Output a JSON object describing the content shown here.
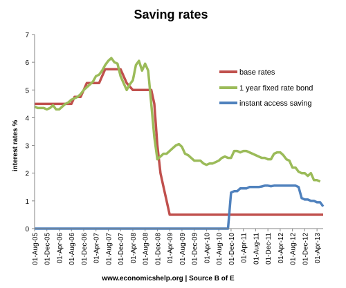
{
  "chart_data": {
    "type": "line",
    "title": "Saving rates",
    "xlabel": "",
    "ylabel": "interest rates %",
    "ylim": [
      0,
      7
    ],
    "yticks": [
      "0",
      "1",
      "2",
      "3",
      "4",
      "5",
      "6",
      "7"
    ],
    "grid": false,
    "legend_position": "right",
    "x_tick_labels": [
      "01-Aug-05",
      "01-Dec-05",
      "01-Apr-06",
      "01-Aug-06",
      "01-Dec-06",
      "01-Apr-07",
      "01-Aug-07",
      "01-Dec-07",
      "01-Apr-08",
      "01-Aug-08",
      "01-Dec-08",
      "01-Apr-09",
      "01-Aug-09",
      "01-Dec-09",
      "01-Apr-10",
      "01-Aug-10",
      "01-Dec-10",
      "01-Apr-11",
      "01-Aug-11",
      "01-Dec-11",
      "01-Apr-12",
      "01-Aug-12",
      "01-Dec-12",
      "01-Apr-13"
    ],
    "x_range": [
      "2005-08",
      "2013-06"
    ],
    "series": [
      {
        "name": "base rates",
        "color": "#C0504D",
        "points": [
          [
            "2005-08",
            4.5
          ],
          [
            "2006-08",
            4.5
          ],
          [
            "2006-09",
            4.75
          ],
          [
            "2006-11",
            4.75
          ],
          [
            "2006-12",
            5.0
          ],
          [
            "2007-01",
            5.25
          ],
          [
            "2007-05",
            5.25
          ],
          [
            "2007-06",
            5.5
          ],
          [
            "2007-07",
            5.75
          ],
          [
            "2007-12",
            5.75
          ],
          [
            "2008-01",
            5.5
          ],
          [
            "2008-02",
            5.25
          ],
          [
            "2008-04",
            5.0
          ],
          [
            "2008-10",
            5.0
          ],
          [
            "2008-11",
            4.5
          ],
          [
            "2008-12",
            3.0
          ],
          [
            "2009-01",
            2.0
          ],
          [
            "2009-02",
            1.5
          ],
          [
            "2009-03",
            1.0
          ],
          [
            "2009-04",
            0.5
          ],
          [
            "2013-06",
            0.5
          ]
        ]
      },
      {
        "name": "1 year fixed rate bond",
        "color": "#9BBB59",
        "points": [
          [
            "2005-08",
            4.4
          ],
          [
            "2005-09",
            4.35
          ],
          [
            "2005-11",
            4.35
          ],
          [
            "2005-12",
            4.3
          ],
          [
            "2006-01",
            4.35
          ],
          [
            "2006-02",
            4.45
          ],
          [
            "2006-03",
            4.3
          ],
          [
            "2006-04",
            4.3
          ],
          [
            "2006-05",
            4.4
          ],
          [
            "2006-06",
            4.5
          ],
          [
            "2006-07",
            4.55
          ],
          [
            "2006-08",
            4.65
          ],
          [
            "2006-09",
            4.7
          ],
          [
            "2006-10",
            4.75
          ],
          [
            "2006-11",
            4.85
          ],
          [
            "2006-12",
            5.0
          ],
          [
            "2007-01",
            5.1
          ],
          [
            "2007-02",
            5.2
          ],
          [
            "2007-03",
            5.3
          ],
          [
            "2007-04",
            5.5
          ],
          [
            "2007-05",
            5.55
          ],
          [
            "2007-06",
            5.7
          ],
          [
            "2007-07",
            5.9
          ],
          [
            "2007-08",
            6.05
          ],
          [
            "2007-09",
            6.15
          ],
          [
            "2007-10",
            6.0
          ],
          [
            "2007-11",
            5.95
          ],
          [
            "2007-12",
            5.5
          ],
          [
            "2008-01",
            5.25
          ],
          [
            "2008-02",
            5.0
          ],
          [
            "2008-03",
            5.2
          ],
          [
            "2008-04",
            5.35
          ],
          [
            "2008-05",
            5.9
          ],
          [
            "2008-06",
            6.05
          ],
          [
            "2008-07",
            5.7
          ],
          [
            "2008-08",
            5.95
          ],
          [
            "2008-09",
            5.7
          ],
          [
            "2008-10",
            4.5
          ],
          [
            "2008-11",
            3.3
          ],
          [
            "2008-12",
            2.5
          ],
          [
            "2009-01",
            2.6
          ],
          [
            "2009-02",
            2.7
          ],
          [
            "2009-03",
            2.7
          ],
          [
            "2009-04",
            2.8
          ],
          [
            "2009-05",
            2.9
          ],
          [
            "2009-06",
            3.0
          ],
          [
            "2009-07",
            3.05
          ],
          [
            "2009-08",
            2.95
          ],
          [
            "2009-09",
            2.7
          ],
          [
            "2009-10",
            2.65
          ],
          [
            "2009-11",
            2.55
          ],
          [
            "2009-12",
            2.45
          ],
          [
            "2010-01",
            2.45
          ],
          [
            "2010-02",
            2.45
          ],
          [
            "2010-03",
            2.35
          ],
          [
            "2010-04",
            2.3
          ],
          [
            "2010-05",
            2.35
          ],
          [
            "2010-06",
            2.35
          ],
          [
            "2010-07",
            2.4
          ],
          [
            "2010-08",
            2.45
          ],
          [
            "2010-09",
            2.55
          ],
          [
            "2010-10",
            2.6
          ],
          [
            "2010-11",
            2.55
          ],
          [
            "2010-12",
            2.55
          ],
          [
            "2011-01",
            2.8
          ],
          [
            "2011-02",
            2.8
          ],
          [
            "2011-03",
            2.75
          ],
          [
            "2011-04",
            2.8
          ],
          [
            "2011-05",
            2.8
          ],
          [
            "2011-06",
            2.75
          ],
          [
            "2011-07",
            2.7
          ],
          [
            "2011-08",
            2.65
          ],
          [
            "2011-09",
            2.6
          ],
          [
            "2011-10",
            2.55
          ],
          [
            "2011-11",
            2.55
          ],
          [
            "2011-12",
            2.5
          ],
          [
            "2012-01",
            2.5
          ],
          [
            "2012-02",
            2.7
          ],
          [
            "2012-03",
            2.75
          ],
          [
            "2012-04",
            2.75
          ],
          [
            "2012-05",
            2.65
          ],
          [
            "2012-06",
            2.5
          ],
          [
            "2012-07",
            2.45
          ],
          [
            "2012-08",
            2.2
          ],
          [
            "2012-09",
            2.2
          ],
          [
            "2012-10",
            2.05
          ],
          [
            "2012-11",
            2.0
          ],
          [
            "2012-12",
            2.0
          ],
          [
            "2013-01",
            1.9
          ],
          [
            "2013-02",
            2.0
          ],
          [
            "2013-03",
            1.75
          ],
          [
            "2013-04",
            1.75
          ],
          [
            "2013-05",
            1.7
          ]
        ]
      },
      {
        "name": "instant access saving",
        "color": "#4F81BD",
        "points": [
          [
            "2005-08",
            0.0
          ],
          [
            "2010-11",
            0.0
          ],
          [
            "2010-12",
            1.3
          ],
          [
            "2011-01",
            1.35
          ],
          [
            "2011-02",
            1.35
          ],
          [
            "2011-03",
            1.45
          ],
          [
            "2011-04",
            1.45
          ],
          [
            "2011-05",
            1.45
          ],
          [
            "2011-06",
            1.5
          ],
          [
            "2011-07",
            1.5
          ],
          [
            "2011-08",
            1.5
          ],
          [
            "2011-09",
            1.5
          ],
          [
            "2011-10",
            1.52
          ],
          [
            "2011-11",
            1.55
          ],
          [
            "2011-12",
            1.55
          ],
          [
            "2012-01",
            1.53
          ],
          [
            "2012-02",
            1.55
          ],
          [
            "2012-03",
            1.55
          ],
          [
            "2012-04",
            1.55
          ],
          [
            "2012-05",
            1.55
          ],
          [
            "2012-06",
            1.55
          ],
          [
            "2012-07",
            1.55
          ],
          [
            "2012-08",
            1.55
          ],
          [
            "2012-09",
            1.55
          ],
          [
            "2012-10",
            1.5
          ],
          [
            "2012-11",
            1.1
          ],
          [
            "2012-12",
            1.05
          ],
          [
            "2013-01",
            1.05
          ],
          [
            "2013-02",
            1.0
          ],
          [
            "2013-03",
            1.0
          ],
          [
            "2013-04",
            0.95
          ],
          [
            "2013-05",
            0.95
          ],
          [
            "2013-06",
            0.8
          ]
        ]
      }
    ],
    "footer": "www.economicshelp.org | Source B of E"
  }
}
